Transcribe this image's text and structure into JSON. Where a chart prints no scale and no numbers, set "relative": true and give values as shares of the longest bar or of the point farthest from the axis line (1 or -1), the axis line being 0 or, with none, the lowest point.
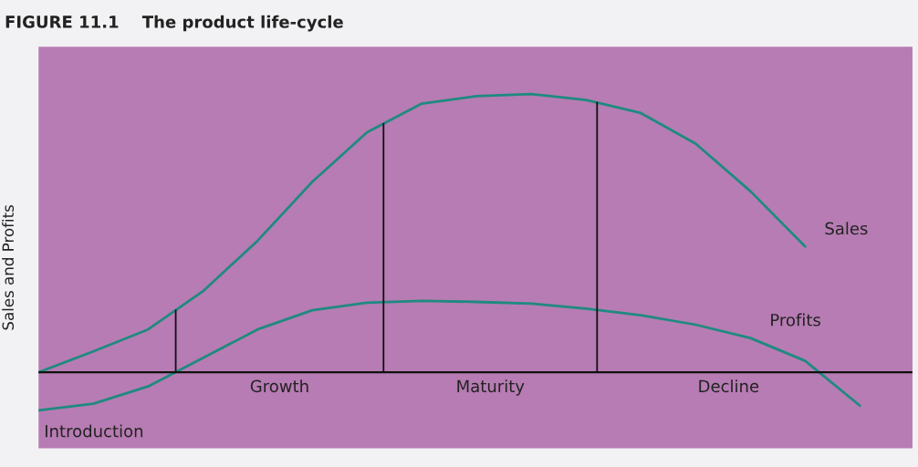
{
  "chart_data": {
    "type": "line",
    "title": "FIGURE 11.1    The product life-cycle",
    "ylabel": "Sales and Profits",
    "relative": true,
    "legend": false,
    "categories": [
      null,
      null,
      null,
      null,
      null,
      null,
      null,
      null,
      null,
      null,
      null,
      null,
      null,
      null,
      null,
      null
    ],
    "series": [
      {
        "name": "Sales",
        "color": "#1f8a80",
        "values": [
          0,
          0.075,
          0.154,
          0.291,
          0.473,
          0.685,
          0.863,
          0.966,
          0.993,
          1.0,
          0.979,
          0.932,
          0.822,
          0.651,
          0.452,
          null
        ]
      },
      {
        "name": "Profits",
        "color": "#1f8a80",
        "values": [
          -0.137,
          -0.113,
          -0.051,
          0.051,
          0.154,
          0.223,
          0.25,
          0.257,
          0.253,
          0.247,
          0.229,
          0.205,
          0.171,
          0.123,
          0.041,
          -0.12
        ]
      }
    ],
    "annotations": [
      "Introduction",
      "Growth",
      "Maturity",
      "Decline"
    ]
  }
}
